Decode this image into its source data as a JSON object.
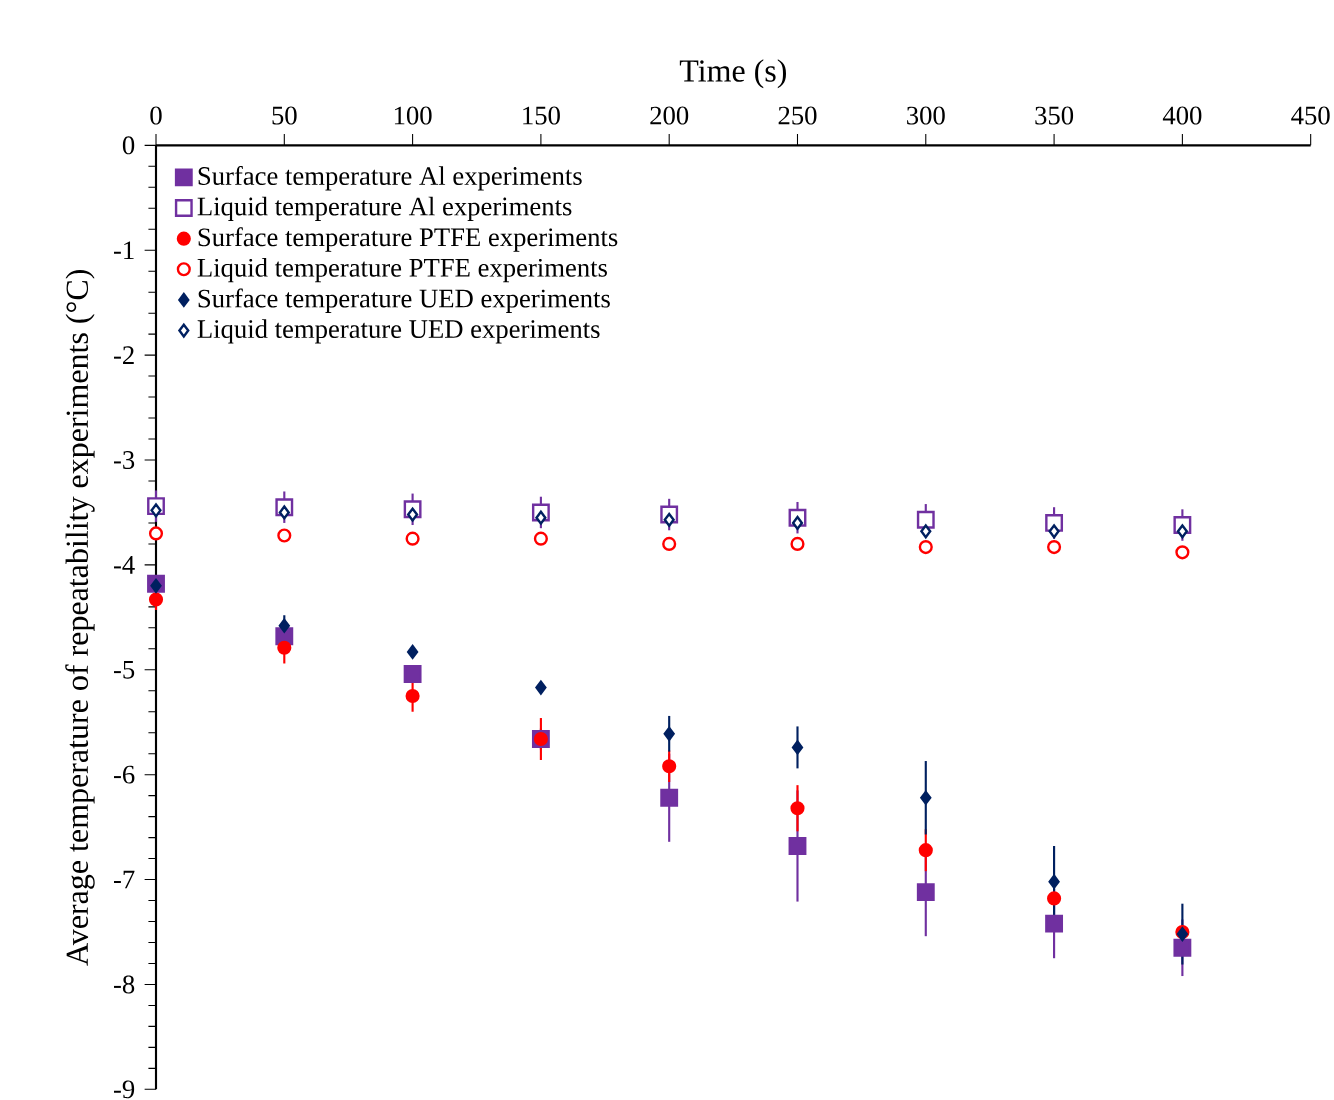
{
  "chart_data": {
    "type": "scatter",
    "xlabel": "Time (s)",
    "ylabel": "Average temperature of repeatability experiments (°C)",
    "x": [
      0,
      50,
      100,
      150,
      200,
      250,
      300,
      350,
      400
    ],
    "xlim": [
      0,
      450
    ],
    "xticks": [
      0,
      50,
      100,
      150,
      200,
      250,
      300,
      350,
      400,
      450
    ],
    "ylim": [
      -9,
      0
    ],
    "yticks": [
      -9,
      -8,
      -7,
      -6,
      -5,
      -4,
      -3,
      -2,
      -1,
      0
    ],
    "grid": false,
    "legend": "top left",
    "series": [
      {
        "name": "Surface temperature Al experiments",
        "color": "#7030a0",
        "marker": "square",
        "values": [
          -4.18,
          -4.68,
          -5.04,
          -5.66,
          -6.22,
          -6.68,
          -7.12,
          -7.42,
          -7.65
        ],
        "errors": [
          0.05,
          0.05,
          0.05,
          0.1,
          0.42,
          0.53,
          0.42,
          0.33,
          0.27
        ]
      },
      {
        "name": "Liquid temperature Al experiments",
        "color": "#7030a0",
        "marker": "square",
        "values": [
          -3.44,
          -3.45,
          -3.47,
          -3.5,
          -3.52,
          -3.55,
          -3.57,
          -3.6,
          -3.62
        ],
        "errors": [
          0.15,
          0.15,
          0.15,
          0.15,
          0.15,
          0.15,
          0.15,
          0.15,
          0.15
        ]
      },
      {
        "name": "Surface temperature PTFE experiments",
        "color": "#ff0000",
        "marker": "circle",
        "values": [
          -4.33,
          -4.79,
          -5.25,
          -5.66,
          -5.92,
          -6.32,
          -6.72,
          -7.18,
          -7.5
        ],
        "errors": [
          0.1,
          0.15,
          0.15,
          0.2,
          0.15,
          0.22,
          0.2,
          null,
          null
        ]
      },
      {
        "name": "Liquid temperature PTFE experiments",
        "color": "#ff0000",
        "marker": "circle",
        "values": [
          -3.7,
          -3.72,
          -3.75,
          -3.75,
          -3.8,
          -3.8,
          -3.83,
          -3.83,
          -3.88
        ]
      },
      {
        "name": "Surface temperature UED experiments",
        "color": "#002060",
        "marker": "diamond",
        "values": [
          -4.2,
          -4.58,
          -4.83,
          -5.17,
          -5.61,
          -5.74,
          -6.22,
          -7.02,
          -7.52
        ],
        "errors": [
          0.1,
          0.1,
          0.05,
          0.05,
          0.17,
          0.2,
          0.35,
          0.34,
          0.29
        ]
      },
      {
        "name": "Liquid temperature UED experiments",
        "color": "#002060",
        "marker": "diamond",
        "values": [
          -3.48,
          -3.5,
          -3.52,
          -3.55,
          -3.57,
          -3.6,
          -3.68,
          -3.68,
          -3.68
        ]
      }
    ]
  }
}
